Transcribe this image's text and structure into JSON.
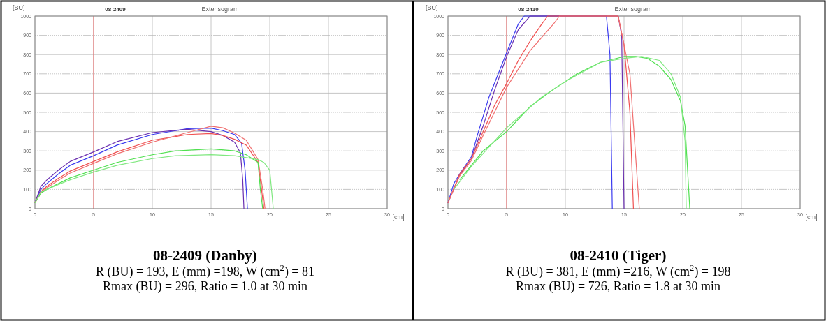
{
  "chart_data": [
    {
      "type": "line",
      "title": "08-2409",
      "subtitle": "Extensogram",
      "xlabel": "[cm]",
      "ylabel": "[BU]",
      "xlim": [
        0,
        30
      ],
      "xticks": [
        0,
        5,
        10,
        15,
        20,
        25,
        30
      ],
      "ylim": [
        0,
        1000
      ],
      "yticks": [
        0,
        100,
        200,
        300,
        400,
        500,
        600,
        700,
        800,
        900,
        1000
      ],
      "grid": true,
      "line_style": "solid",
      "ref_lines": [
        {
          "axis": "x",
          "value": 5,
          "color": "#e86060"
        }
      ],
      "annotations": [
        "08-2409 (Danby)",
        "R (BU) = 193, E (mm) =198, W (cm$^{2}$) = 81",
        "Rmax (BU) = 296, Ratio = 1.0 at 30 min"
      ],
      "series": [
        {
          "color": "#3a3af0",
          "x": [
            0,
            0.5,
            1,
            2,
            3,
            5,
            7,
            10,
            13,
            15,
            16,
            17,
            17.6,
            17.9,
            18.1
          ],
          "values": [
            30,
            100,
            130,
            180,
            225,
            275,
            330,
            385,
            415,
            418,
            405,
            385,
            340,
            200,
            0
          ]
        },
        {
          "color": "#6a2fb0",
          "x": [
            0,
            0.5,
            1,
            2,
            3,
            5,
            7,
            10,
            13,
            15,
            16,
            17,
            17.5,
            17.7,
            17.8
          ],
          "values": [
            30,
            115,
            148,
            200,
            245,
            295,
            348,
            395,
            412,
            400,
            380,
            345,
            290,
            150,
            0
          ]
        },
        {
          "color": "#f05050",
          "x": [
            0,
            0.5,
            1,
            2,
            3,
            5,
            7,
            10,
            13,
            15,
            16,
            17,
            18,
            19,
            19.3,
            19.5
          ],
          "values": [
            30,
            88,
            115,
            158,
            195,
            245,
            295,
            355,
            385,
            390,
            380,
            360,
            330,
            240,
            100,
            0
          ]
        },
        {
          "color": "#f07070",
          "x": [
            0,
            0.5,
            1,
            2,
            3,
            5,
            7,
            10,
            13,
            15,
            16,
            17,
            18,
            19,
            19.4,
            19.6
          ],
          "values": [
            30,
            80,
            108,
            148,
            185,
            235,
            285,
            345,
            395,
            428,
            420,
            392,
            355,
            255,
            100,
            0
          ]
        },
        {
          "color": "#50e050",
          "x": [
            0,
            0.5,
            1,
            2,
            3,
            5,
            7,
            10,
            12,
            15,
            17,
            18,
            19,
            19.2,
            19.4
          ],
          "values": [
            30,
            80,
            100,
            130,
            160,
            200,
            240,
            280,
            300,
            310,
            300,
            280,
            240,
            100,
            0
          ]
        },
        {
          "color": "#80e880",
          "x": [
            0,
            0.5,
            1,
            2,
            3,
            5,
            7,
            10,
            12,
            15,
            17,
            18,
            19,
            19.5,
            20,
            20.3
          ],
          "values": [
            30,
            85,
            100,
            125,
            150,
            190,
            225,
            260,
            275,
            280,
            275,
            265,
            255,
            240,
            200,
            0
          ]
        }
      ]
    },
    {
      "type": "line",
      "title": "08-2410",
      "subtitle": "Extensogram",
      "xlabel": "[cm]",
      "ylabel": "[BU]",
      "xlim": [
        0,
        30
      ],
      "xticks": [
        0,
        5,
        10,
        15,
        20,
        25,
        30
      ],
      "ylim": [
        0,
        1000
      ],
      "yticks": [
        0,
        100,
        200,
        300,
        400,
        500,
        600,
        700,
        800,
        900,
        1000
      ],
      "grid": true,
      "line_style": "solid",
      "ref_lines": [
        {
          "axis": "x",
          "value": 5,
          "color": "#e86060"
        }
      ],
      "annotations": [
        "08-2410 (Tiger)",
        "R (BU) = 381, E (mm) =216, W (cm$^{2}$) = 198",
        "Rmax (BU) = 726, Ratio = 1.8 at 30 min"
      ],
      "series": [
        {
          "color": "#3a3af0",
          "x": [
            0,
            0.5,
            1,
            2,
            2.5,
            3.5,
            5,
            6,
            6.5,
            8,
            13.5,
            13.8,
            14
          ],
          "values": [
            30,
            130,
            180,
            270,
            380,
            580,
            810,
            960,
            1000,
            1000,
            1000,
            800,
            0
          ]
        },
        {
          "color": "#6a2fb0",
          "x": [
            0,
            1,
            2,
            3,
            4,
            5,
            6,
            7,
            14.5,
            14.8,
            15
          ],
          "values": [
            30,
            175,
            260,
            430,
            620,
            790,
            930,
            1000,
            1000,
            900,
            0
          ]
        },
        {
          "color": "#f05050",
          "x": [
            0,
            1,
            2,
            3,
            4,
            5,
            6,
            7,
            8,
            8.5,
            14.5,
            15,
            15.5,
            15.8
          ],
          "values": [
            30,
            180,
            260,
            400,
            540,
            650,
            770,
            870,
            960,
            1000,
            1000,
            850,
            500,
            0
          ]
        },
        {
          "color": "#f07070",
          "x": [
            0,
            1,
            2,
            3,
            5,
            7,
            9,
            9.5,
            14.5,
            15.5,
            16.3
          ],
          "values": [
            30,
            170,
            250,
            380,
            630,
            820,
            960,
            1000,
            1000,
            700,
            0
          ]
        },
        {
          "color": "#50e050",
          "x": [
            1,
            3,
            5,
            7,
            9,
            11,
            13,
            15,
            16,
            17,
            18,
            19,
            19.8,
            20.2,
            20.6
          ],
          "values": [
            150,
            300,
            400,
            530,
            620,
            700,
            760,
            790,
            790,
            780,
            740,
            670,
            560,
            430,
            0
          ]
        },
        {
          "color": "#80e880",
          "x": [
            0.5,
            2,
            5,
            8,
            10,
            13,
            15,
            16.5,
            18,
            19,
            19.8,
            20.2,
            20.3
          ],
          "values": [
            100,
            220,
            420,
            580,
            660,
            760,
            780,
            790,
            770,
            700,
            580,
            350,
            0
          ]
        }
      ]
    }
  ]
}
